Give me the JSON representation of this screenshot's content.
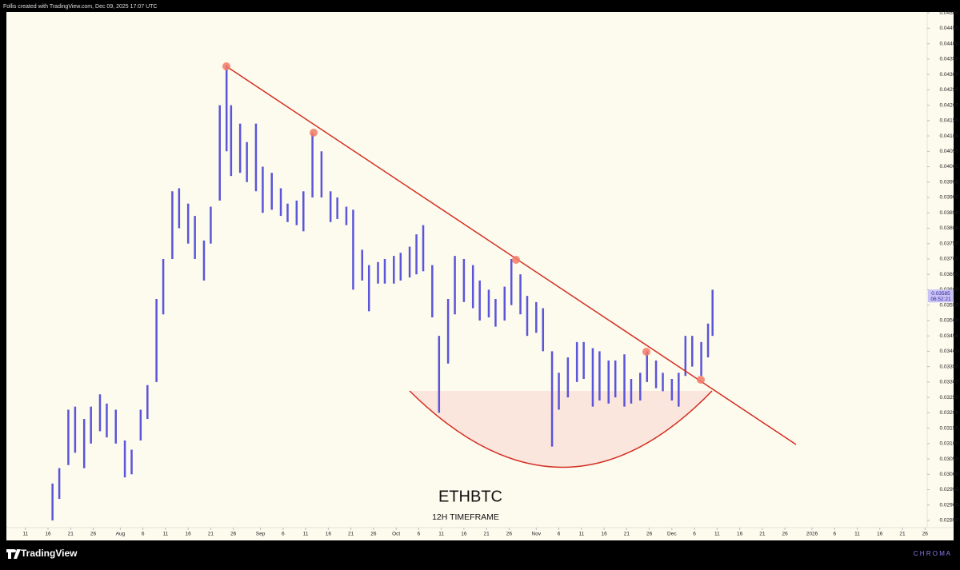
{
  "header": "Follis created with TradingView.com, Dec 09, 2025 17:07 UTC",
  "footer": {
    "logo": "TradingView",
    "brand": "C H R O M A"
  },
  "chart_data": {
    "type": "range-bar",
    "title": "ETHBTC",
    "subtitle": "12H TIMEFRAME",
    "color": "#5a55d9",
    "x": [
      198,
      199.5,
      201.5,
      203,
      205,
      206.5,
      208.5,
      210,
      212,
      214,
      215.5,
      217.5,
      219,
      221,
      222.5,
      224.5,
      226,
      228,
      229.5,
      231.5,
      233,
      235,
      236.5,
      237.5,
      239.5,
      241,
      243,
      244.5,
      246.5,
      248.5,
      250,
      252,
      253.5,
      255.5,
      257.5,
      259.5,
      261,
      263,
      264.5,
      266.5,
      268,
      270,
      271.5,
      273.5,
      275,
      277,
      278.5,
      280,
      282,
      283.5,
      285.5,
      287,
      289,
      291,
      292.5,
      294.5,
      296,
      298,
      299.5,
      301.5,
      303,
      305,
      306.5,
      308.5,
      310,
      312,
      314,
      315.5,
      317.5,
      319,
      321,
      322.5,
      324.5,
      326,
      328,
      329.5,
      331.5,
      333,
      335,
      336.5,
      338,
      339.5,
      341.5,
      343,
      344
    ],
    "high": [
      0.0297,
      0.0302,
      0.0321,
      0.0322,
      0.0318,
      0.0322,
      0.0326,
      0.0323,
      0.0321,
      0.0311,
      0.0308,
      0.0321,
      0.0329,
      0.0357,
      0.037,
      0.0392,
      0.0393,
      0.0388,
      0.0384,
      0.0376,
      0.0387,
      0.042,
      0.0433,
      0.042,
      0.0414,
      0.0408,
      0.0414,
      0.04,
      0.0398,
      0.0393,
      0.0388,
      0.0389,
      0.0392,
      0.0411,
      0.0405,
      0.0392,
      0.039,
      0.0387,
      0.0386,
      0.0373,
      0.0368,
      0.0369,
      0.037,
      0.0371,
      0.0372,
      0.0374,
      0.0378,
      0.0381,
      0.0368,
      0.0345,
      0.0357,
      0.0371,
      0.037,
      0.0368,
      0.0363,
      0.036,
      0.0357,
      0.0361,
      0.037,
      0.0365,
      0.0358,
      0.0356,
      0.0354,
      0.034,
      0.0333,
      0.0338,
      0.0343,
      0.0343,
      0.0341,
      0.034,
      0.0337,
      0.0337,
      0.0339,
      0.0331,
      0.0333,
      0.034,
      0.0337,
      0.0333,
      0.0331,
      0.0333,
      0.0345,
      0.0345,
      0.0343,
      0.0349,
      0.036
    ],
    "low": [
      0.0285,
      0.0292,
      0.0303,
      0.0307,
      0.0302,
      0.031,
      0.0314,
      0.0312,
      0.031,
      0.0299,
      0.03,
      0.0311,
      0.0318,
      0.033,
      0.0352,
      0.037,
      0.038,
      0.0375,
      0.037,
      0.0363,
      0.0375,
      0.0389,
      0.0405,
      0.0397,
      0.0398,
      0.0395,
      0.0392,
      0.0385,
      0.0386,
      0.0384,
      0.0382,
      0.0381,
      0.0379,
      0.039,
      0.039,
      0.0382,
      0.0383,
      0.0381,
      0.036,
      0.0363,
      0.0353,
      0.0362,
      0.0362,
      0.0362,
      0.0363,
      0.0364,
      0.0365,
      0.0366,
      0.0351,
      0.032,
      0.0336,
      0.0352,
      0.0356,
      0.0354,
      0.035,
      0.0351,
      0.0348,
      0.035,
      0.0355,
      0.0352,
      0.0345,
      0.0346,
      0.034,
      0.0309,
      0.0321,
      0.0325,
      0.033,
      0.0331,
      0.0322,
      0.0324,
      0.0323,
      0.0325,
      0.0322,
      0.0323,
      0.0324,
      0.033,
      0.0328,
      0.0327,
      0.0324,
      0.0322,
      0.0332,
      0.0335,
      0.0332,
      0.0338,
      0.0345
    ],
    "xlim": [
      187.8,
      391.3
    ],
    "ylim": [
      0.028266,
      0.04503
    ],
    "last_price": {
      "value": 0.03585,
      "label": "0.03585",
      "countdown": "06:52:21"
    },
    "xticks": [
      {
        "value": 192,
        "label": "11"
      },
      {
        "value": 197,
        "label": "16"
      },
      {
        "value": 202,
        "label": "21"
      },
      {
        "value": 207,
        "label": "26"
      },
      {
        "value": 213,
        "label": "Aug"
      },
      {
        "value": 218,
        "label": "6"
      },
      {
        "value": 223,
        "label": "11"
      },
      {
        "value": 228,
        "label": "16"
      },
      {
        "value": 233,
        "label": "21"
      },
      {
        "value": 238,
        "label": "26"
      },
      {
        "value": 244,
        "label": "Sep"
      },
      {
        "value": 249,
        "label": "6"
      },
      {
        "value": 254,
        "label": "11"
      },
      {
        "value": 259,
        "label": "16"
      },
      {
        "value": 264,
        "label": "21"
      },
      {
        "value": 269,
        "label": "26"
      },
      {
        "value": 274,
        "label": "Oct"
      },
      {
        "value": 279,
        "label": "6"
      },
      {
        "value": 284,
        "label": "11"
      },
      {
        "value": 289,
        "label": "16"
      },
      {
        "value": 294,
        "label": "21"
      },
      {
        "value": 299,
        "label": "26"
      },
      {
        "value": 305,
        "label": "Nov"
      },
      {
        "value": 310,
        "label": "6"
      },
      {
        "value": 315,
        "label": "11"
      },
      {
        "value": 320,
        "label": "16"
      },
      {
        "value": 325,
        "label": "21"
      },
      {
        "value": 330,
        "label": "26"
      },
      {
        "value": 335,
        "label": "Dec"
      },
      {
        "value": 340,
        "label": "6"
      },
      {
        "value": 345,
        "label": "11"
      },
      {
        "value": 350,
        "label": "16"
      },
      {
        "value": 355,
        "label": "21"
      },
      {
        "value": 360,
        "label": "26"
      },
      {
        "value": 366,
        "label": "2026"
      },
      {
        "value": 371,
        "label": "6"
      },
      {
        "value": 376,
        "label": "11"
      },
      {
        "value": 381,
        "label": "16"
      },
      {
        "value": 386,
        "label": "21"
      },
      {
        "value": 391,
        "label": "26"
      }
    ],
    "yticks": [
      {
        "value": 0.0285,
        "label": "0.02850"
      },
      {
        "value": 0.029,
        "label": "0.02900"
      },
      {
        "value": 0.0295,
        "label": "0.02950"
      },
      {
        "value": 0.03,
        "label": "0.03000"
      },
      {
        "value": 0.0305,
        "label": "0.03050"
      },
      {
        "value": 0.031,
        "label": "0.03100"
      },
      {
        "value": 0.0315,
        "label": "0.03150"
      },
      {
        "value": 0.032,
        "label": "0.03200"
      },
      {
        "value": 0.0325,
        "label": "0.03250"
      },
      {
        "value": 0.033,
        "label": "0.03300"
      },
      {
        "value": 0.0335,
        "label": "0.03350"
      },
      {
        "value": 0.034,
        "label": "0.03400"
      },
      {
        "value": 0.0345,
        "label": "0.03450"
      },
      {
        "value": 0.035,
        "label": "0.03500"
      },
      {
        "value": 0.0355,
        "label": "0.03550"
      },
      {
        "value": 0.036,
        "label": "0.03600"
      },
      {
        "value": 0.0365,
        "label": "0.03650"
      },
      {
        "value": 0.037,
        "label": "0.03700"
      },
      {
        "value": 0.0375,
        "label": "0.03750"
      },
      {
        "value": 0.038,
        "label": "0.03800"
      },
      {
        "value": 0.0385,
        "label": "0.03850"
      },
      {
        "value": 0.039,
        "label": "0.03900"
      },
      {
        "value": 0.0395,
        "label": "0.03950"
      },
      {
        "value": 0.04,
        "label": "0.04000"
      },
      {
        "value": 0.0405,
        "label": "0.04050"
      },
      {
        "value": 0.041,
        "label": "0.04100"
      },
      {
        "value": 0.0415,
        "label": "0.04150"
      },
      {
        "value": 0.042,
        "label": "0.04200"
      },
      {
        "value": 0.0425,
        "label": "0.04250"
      },
      {
        "value": 0.043,
        "label": "0.04300"
      },
      {
        "value": 0.0435,
        "label": "0.04350"
      },
      {
        "value": 0.044,
        "label": "0.04400"
      },
      {
        "value": 0.0445,
        "label": "0.04450"
      },
      {
        "value": 0.045,
        "label": "0.04500"
      }
    ]
  }
}
